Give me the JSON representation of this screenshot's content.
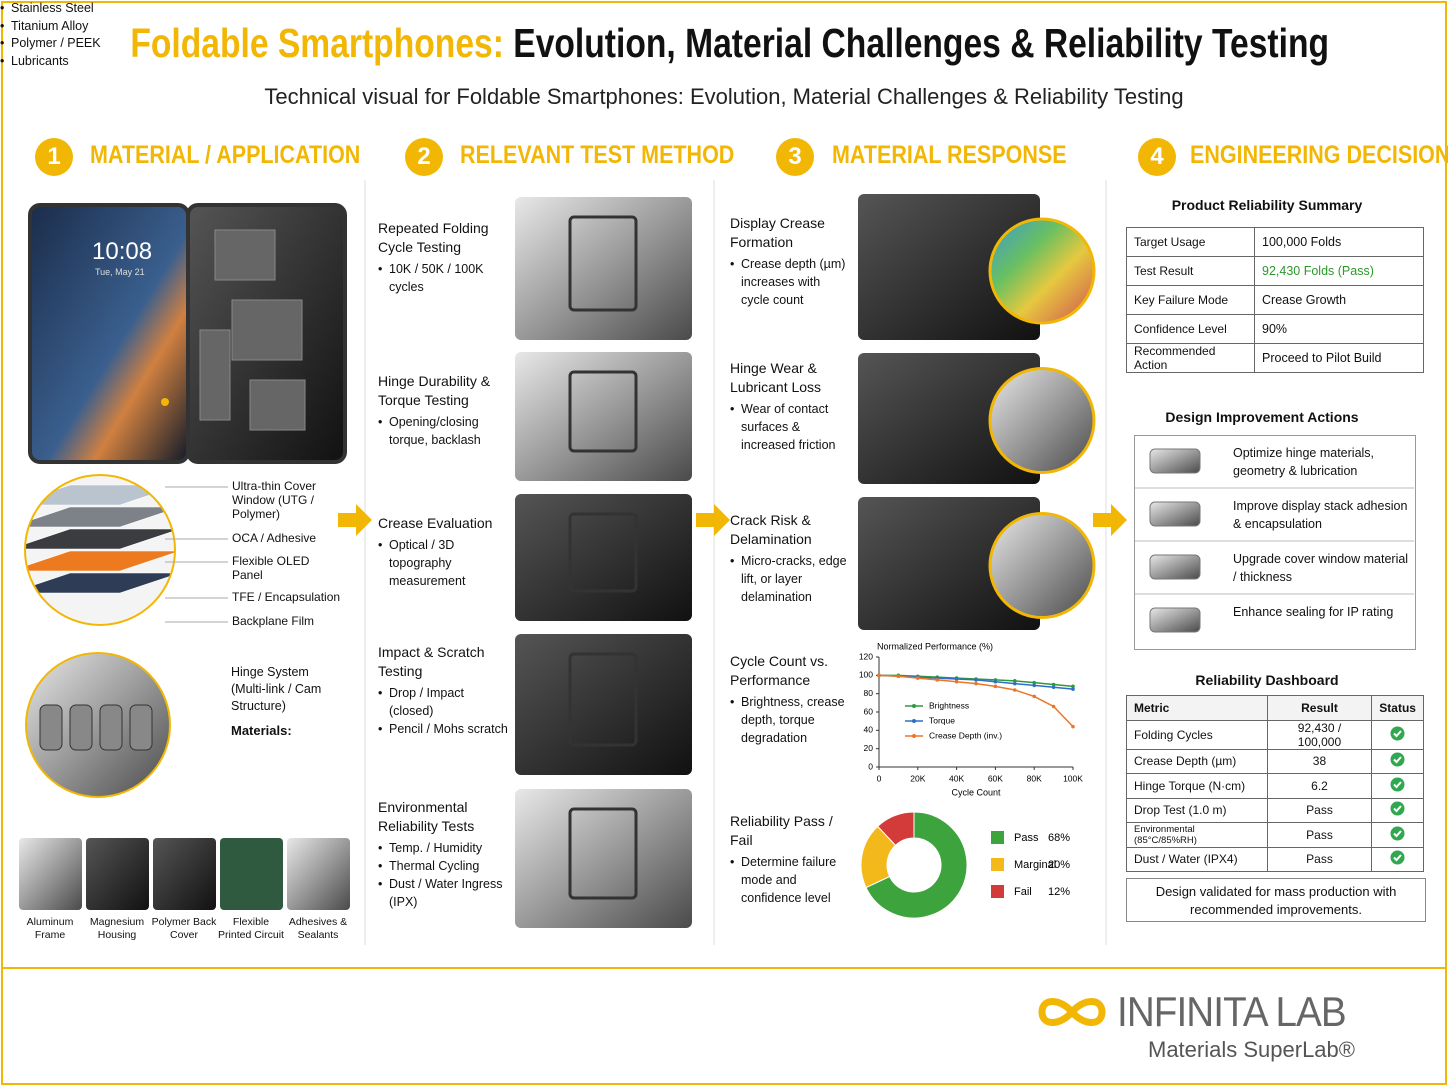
{
  "header": {
    "title_accent": "Foldable Smartphones:",
    "title_main": "Evolution, Material Challenges & Reliability Testing",
    "subtitle": "Technical visual for Foldable Smartphones: Evolution, Material Challenges & Reliability Testing"
  },
  "steps": [
    {
      "number": "1",
      "heading": "MATERIAL / APPLICATION"
    },
    {
      "number": "2",
      "heading": "RELEVANT TEST METHOD"
    },
    {
      "number": "3",
      "heading": "MATERIAL RESPONSE"
    },
    {
      "number": "4",
      "heading": "ENGINEERING DECISION"
    }
  ],
  "material": {
    "phone_time": "10:08",
    "phone_date": "Tue, May 21",
    "layers": [
      "Ultra-thin Cover Window (UTG / Polymer)",
      "OCA / Adhesive",
      "Flexible OLED Panel",
      "TFE / Encapsulation",
      "Backplane Film"
    ],
    "hinge": {
      "title": "Hinge System (Multi-link / Cam Structure)",
      "materials_heading": "Materials:",
      "materials": [
        "Stainless Steel",
        "Titanium Alloy",
        "Polymer / PEEK",
        "Lubricants"
      ]
    },
    "components": [
      "Aluminum Frame",
      "Magnesium Housing",
      "Polymer Back Cover",
      "Flexible Printed Circuit",
      "Adhesives & Sealants"
    ]
  },
  "tests": [
    {
      "title": "Repeated Folding Cycle Testing",
      "bullets": [
        "10K / 50K / 100K cycles"
      ]
    },
    {
      "title": "Hinge Durability & Torque Testing",
      "bullets": [
        "Opening/closing torque, backlash"
      ]
    },
    {
      "title": "Crease Evaluation",
      "bullets": [
        "Optical / 3D topography measurement"
      ]
    },
    {
      "title": "Impact & Scratch Testing",
      "bullets": [
        "Drop / Impact (closed)",
        "Pencil / Mohs scratch"
      ]
    },
    {
      "title": "Environmental Reliability Tests",
      "bullets": [
        "Temp. / Humidity",
        "Thermal Cycling",
        "Dust / Water Ingress (IPX)"
      ]
    }
  ],
  "responses": [
    {
      "title": "Display Crease Formation",
      "bullets": [
        "Crease depth (µm) increases with cycle count"
      ]
    },
    {
      "title": "Hinge Wear & Lubricant Loss",
      "bullets": [
        "Wear of contact surfaces & increased friction"
      ]
    },
    {
      "title": "Crack Risk & Delamination",
      "bullets": [
        "Micro-cracks, edge lift, or layer delamination"
      ]
    },
    {
      "title": "Cycle Count vs. Performance",
      "bullets": [
        "Brightness, crease depth, torque degradation"
      ]
    },
    {
      "title": "Reliability Pass / Fail",
      "bullets": [
        "Determine failure mode and confidence level"
      ]
    }
  ],
  "chart_data": [
    {
      "type": "line",
      "title": "Normalized Performance (%)",
      "x_label": "Cycle Count",
      "x": [
        0,
        10000,
        20000,
        30000,
        40000,
        50000,
        60000,
        70000,
        80000,
        90000,
        100000
      ],
      "xlim": [
        0,
        100000
      ],
      "xticks": [
        0,
        {
          "value": 20000,
          "label": "20K"
        },
        {
          "value": 40000,
          "label": "40K"
        },
        {
          "value": 60000,
          "label": "60K"
        },
        {
          "value": 80000,
          "label": "80K"
        },
        {
          "value": 100000,
          "label": "100K"
        }
      ],
      "ylim": [
        0,
        120
      ],
      "yticks": [
        0,
        20,
        40,
        60,
        80,
        100,
        120
      ],
      "legend": "center left",
      "markers": true,
      "series": [
        {
          "name": "Brightness",
          "color": "#2e9b3a",
          "values": [
            100,
            100,
            99,
            98,
            97,
            96,
            95,
            94,
            92,
            90,
            88
          ]
        },
        {
          "name": "Torque",
          "color": "#2f6fc4",
          "values": [
            100,
            99,
            98,
            97,
            96,
            95,
            93,
            91,
            89,
            87,
            85
          ]
        },
        {
          "name": "Crease Depth (inv.)",
          "color": "#ee7526",
          "values": [
            100,
            99,
            97,
            95,
            93,
            91,
            88,
            84,
            77,
            66,
            44
          ]
        }
      ]
    },
    {
      "type": "pie",
      "donut": true,
      "categories": [
        "Pass",
        "Marginal",
        "Fail"
      ],
      "values": [
        68,
        20,
        12
      ],
      "value_labels": [
        "68%",
        "20%",
        "12%"
      ],
      "colors": [
        "#3da33d",
        "#f3b81a",
        "#d33a3a"
      ]
    }
  ],
  "summary": {
    "title": "Product Reliability Summary",
    "rows": [
      [
        "Target Usage",
        "100,000 Folds"
      ],
      [
        "Test Result",
        "92,430 Folds (Pass)"
      ],
      [
        "Key Failure Mode",
        "Crease Growth"
      ],
      [
        "Confidence Level",
        "90%"
      ],
      [
        "Recommended Action",
        "Proceed to Pilot Build"
      ]
    ]
  },
  "actions": {
    "title": "Design Improvement Actions",
    "items": [
      "Optimize hinge materials, geometry & lubrication",
      "Improve display stack adhesion & encapsulation",
      "Upgrade cover window material / thickness",
      "Enhance sealing for IP rating"
    ]
  },
  "dashboard": {
    "title": "Reliability Dashboard",
    "header": [
      "Metric",
      "Result",
      "Status"
    ],
    "rows": [
      [
        "Folding Cycles",
        "92,430 / 100,000"
      ],
      [
        "Crease Depth (µm)",
        "38"
      ],
      [
        "Hinge Torque (N·cm)",
        "6.2"
      ],
      [
        "Drop Test (1.0 m)",
        "Pass"
      ],
      [
        "Environmental (85°C/85%RH)",
        "Pass"
      ],
      [
        "Dust / Water (IPX4)",
        "Pass"
      ]
    ]
  },
  "conclusion": "Design validated for mass production with recommended improvements.",
  "logo": {
    "name": "INFINITA LAB",
    "tagline": "Materials SuperLab®"
  }
}
